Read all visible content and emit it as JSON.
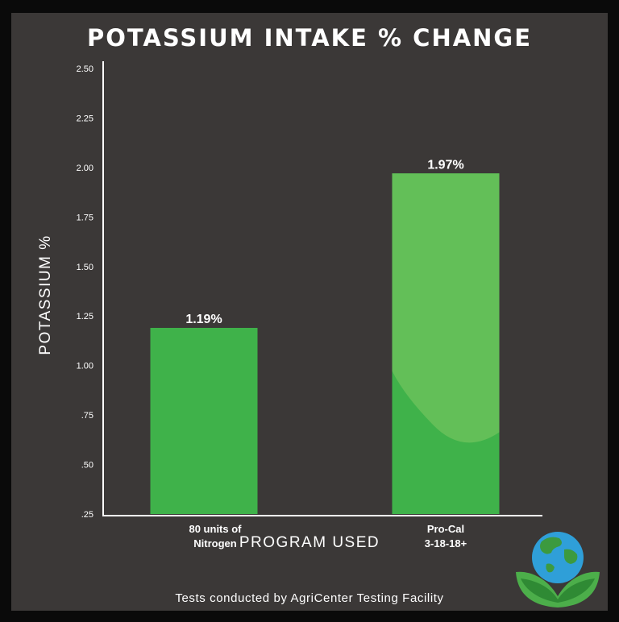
{
  "chart_data": {
    "type": "bar",
    "title": "POTASSIUM INTAKE % CHANGE",
    "xlabel": "PROGRAM USED",
    "ylabel": "POTASSIUM %",
    "categories": [
      [
        "80 units of",
        "Nitrogen"
      ],
      [
        "Pro-Cal",
        "3-18-18+"
      ]
    ],
    "values": [
      1.19,
      1.97
    ],
    "data_labels": [
      "1.19%",
      "1.97%"
    ],
    "ylim": [
      0.25,
      2.5
    ],
    "yticks": [
      ".25",
      ".50",
      ".75",
      "1.00",
      "1.25",
      "1.50",
      "1.75",
      "2.00",
      "2.25",
      "2.50"
    ],
    "ytick_values": [
      0.25,
      0.5,
      0.75,
      1.0,
      1.25,
      1.5,
      1.75,
      2.0,
      2.25,
      2.5
    ],
    "grid": false,
    "colors": {
      "bar": "#3fb24a",
      "bar_highlight": "#63bf58",
      "background": "#3b3837",
      "axis": "#ffffff",
      "text": "#ffffff"
    }
  },
  "footer": "Tests conducted by AgriCenter Testing Facility",
  "logo": {
    "icon": "globe-with-leaves-icon"
  }
}
